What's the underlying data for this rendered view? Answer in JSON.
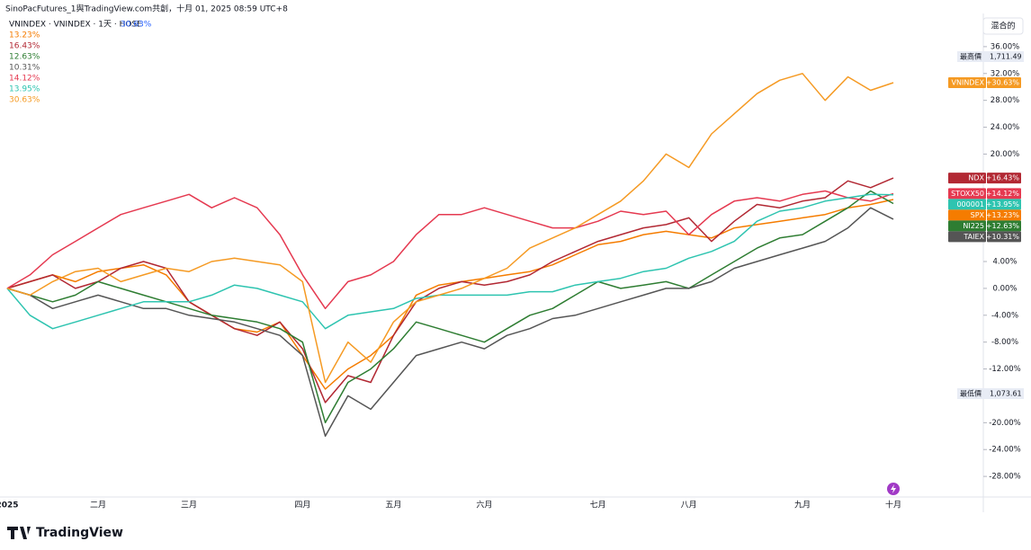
{
  "chart_data": {
    "type": "line",
    "title": "SinoPacFutures_1與TradingView.com共創，十月 01, 2025 08:59 UTC+8",
    "main_legend": "VNINDEX · VNINDEX · 1天 · HOSE",
    "main_value": "30.63%",
    "scale_mode": "混合的",
    "high_label": "最高價",
    "high_value": "1,711.49",
    "low_label": "最低價",
    "low_value": "1,073.61",
    "brand": "TradingView",
    "categories": [
      "2025",
      null,
      null,
      null,
      "二月",
      null,
      null,
      null,
      "三月",
      null,
      null,
      null,
      null,
      "四月",
      null,
      null,
      null,
      "五月",
      null,
      null,
      null,
      "六月",
      null,
      null,
      null,
      null,
      "七月",
      null,
      null,
      null,
      "八月",
      null,
      null,
      null,
      null,
      "九月",
      null,
      null,
      null,
      "十月"
    ],
    "ylim": [
      -32,
      40
    ],
    "yticks": [
      {
        "value": 36,
        "label": "36.00%"
      },
      {
        "value": 32,
        "label": "32.00%"
      },
      {
        "value": 28,
        "label": "28.00%"
      },
      {
        "value": 24,
        "label": "24.00%"
      },
      {
        "value": 20,
        "label": "20.00%"
      },
      {
        "value": 4,
        "label": "4.00%"
      },
      {
        "value": 0,
        "label": "0.00%"
      },
      {
        "value": -4,
        "label": "-4.00%"
      },
      {
        "value": -8,
        "label": "-8.00%"
      },
      {
        "value": -12,
        "label": "-12.00%"
      },
      {
        "value": -20,
        "label": "-20.00%"
      },
      {
        "value": -24,
        "label": "-24.00%"
      },
      {
        "value": -28,
        "label": "-28.00%"
      }
    ],
    "series": [
      {
        "name": "SPX",
        "color": "#f57c00",
        "legend_value": "13.23%",
        "tag_value": "+13.23%",
        "values": [
          0,
          1,
          2,
          1,
          2.5,
          3,
          3.5,
          2,
          -2,
          -4,
          -6,
          -6.5,
          -5,
          -10,
          -15,
          -12,
          -10,
          -7,
          -1,
          0.5,
          1,
          1.5,
          2,
          2.5,
          3.5,
          5,
          6.5,
          7,
          8,
          8.5,
          8,
          7.5,
          9,
          9.5,
          10,
          10.5,
          11,
          12,
          12.5,
          13.23
        ]
      },
      {
        "name": "NDX",
        "color": "#b22833",
        "legend_value": "16.43%",
        "tag_value": "+16.43%",
        "values": [
          0,
          1,
          2,
          0,
          1,
          3,
          4,
          3,
          -2,
          -4,
          -6,
          -7,
          -5,
          -9,
          -17,
          -13,
          -14,
          -7,
          -2,
          0,
          1,
          0.5,
          1,
          2,
          4,
          5.5,
          7,
          8,
          9,
          9.5,
          10.5,
          7,
          10,
          12.5,
          12,
          13,
          13.5,
          16,
          15,
          16.43
        ]
      },
      {
        "name": "NI225",
        "color": "#2e7d32",
        "legend_value": "12.63%",
        "tag_value": "+12.63%",
        "values": [
          0,
          -1,
          -2,
          -1,
          1,
          0,
          -1,
          -2,
          -3,
          -4,
          -4.5,
          -5,
          -6,
          -8,
          -20,
          -14,
          -12,
          -9,
          -5,
          -6,
          -7,
          -8,
          -6,
          -4,
          -3,
          -1,
          1,
          0,
          0.5,
          1,
          0,
          2,
          4,
          6,
          7.5,
          8,
          10,
          12,
          14.5,
          12.63
        ]
      },
      {
        "name": "TAIEX",
        "color": "#555555",
        "legend_value": "10.31%",
        "tag_value": "+10.31%",
        "values": [
          0,
          -1,
          -3,
          -2,
          -1,
          -2,
          -3,
          -3,
          -4,
          -4.5,
          -5,
          -6,
          -7,
          -10,
          -22,
          -16,
          -18,
          -14,
          -10,
          -9,
          -8,
          -9,
          -7,
          -6,
          -4.5,
          -4,
          -3,
          -2,
          -1,
          0,
          0,
          1,
          3,
          4,
          5,
          6,
          7,
          9,
          12,
          10.31
        ]
      },
      {
        "name": "STOXX50",
        "color": "#e53950",
        "legend_value": "14.12%",
        "tag_value": "+14.12%",
        "values": [
          0,
          2,
          5,
          7,
          9,
          11,
          12,
          13,
          14,
          12,
          13.5,
          12,
          8,
          2,
          -3,
          1,
          2,
          4,
          8,
          11,
          11,
          12,
          11,
          10,
          9,
          9,
          10,
          11.5,
          11,
          11.5,
          8,
          11,
          13,
          13.5,
          13,
          14,
          14.5,
          13.5,
          13,
          14.12
        ]
      },
      {
        "name": "000001",
        "color": "#2ec4b0",
        "legend_value": "13.95%",
        "tag_value": "+13.95%",
        "values": [
          0,
          -4,
          -6,
          -5,
          -4,
          -3,
          -2,
          -2,
          -2,
          -1,
          0.5,
          0,
          -1,
          -2,
          -6,
          -4,
          -3.5,
          -3,
          -1.5,
          -1,
          -1,
          -1,
          -1,
          -0.5,
          -0.5,
          0.5,
          1,
          1.5,
          2.5,
          3,
          4.5,
          5.5,
          7,
          10,
          11.5,
          12,
          13,
          13.5,
          14,
          13.95
        ]
      },
      {
        "name": "VNINDEX",
        "color": "#f59a23",
        "legend_value": "30.63%",
        "tag_value": "+30.63%",
        "values": [
          0,
          -1,
          1,
          2.5,
          3,
          1,
          2,
          3,
          2.5,
          4,
          4.5,
          4,
          3.5,
          1,
          -14,
          -8,
          -11,
          -5,
          -2,
          -1,
          0,
          1.5,
          3,
          6,
          7.5,
          9,
          11,
          13,
          16,
          20,
          18,
          23,
          26,
          29,
          31,
          32,
          28,
          31.5,
          29.5,
          30.63
        ]
      }
    ]
  }
}
